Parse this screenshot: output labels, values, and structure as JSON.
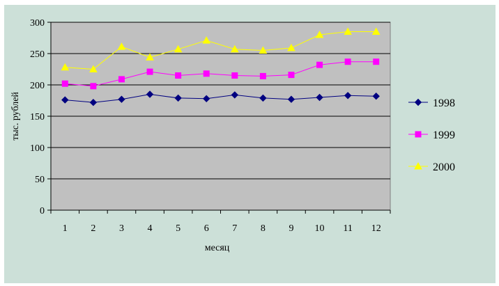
{
  "chart_data": {
    "type": "line",
    "title": "",
    "xlabel": "месяц",
    "ylabel": "тыс. рублей",
    "categories": [
      "1",
      "2",
      "3",
      "4",
      "5",
      "6",
      "7",
      "8",
      "9",
      "10",
      "11",
      "12"
    ],
    "ylim": [
      0,
      300
    ],
    "yticks": [
      0,
      50,
      100,
      150,
      200,
      250,
      300
    ],
    "grid": true,
    "legend_position": "right",
    "plot_background": "#c0c0c0",
    "chart_background": "#cce0d8",
    "series": [
      {
        "name": "1998",
        "color": "#000080",
        "marker": "diamond",
        "values": [
          176,
          172,
          177,
          185,
          179,
          178,
          184,
          179,
          177,
          180,
          183,
          182
        ]
      },
      {
        "name": "1999",
        "color": "#ff00ff",
        "marker": "square",
        "values": [
          202,
          198,
          209,
          221,
          215,
          218,
          215,
          214,
          216,
          232,
          237,
          237
        ]
      },
      {
        "name": "2000",
        "color": "#ffff00",
        "marker": "triangle",
        "values": [
          228,
          225,
          261,
          244,
          257,
          271,
          257,
          255,
          259,
          280,
          285,
          285
        ]
      }
    ]
  }
}
